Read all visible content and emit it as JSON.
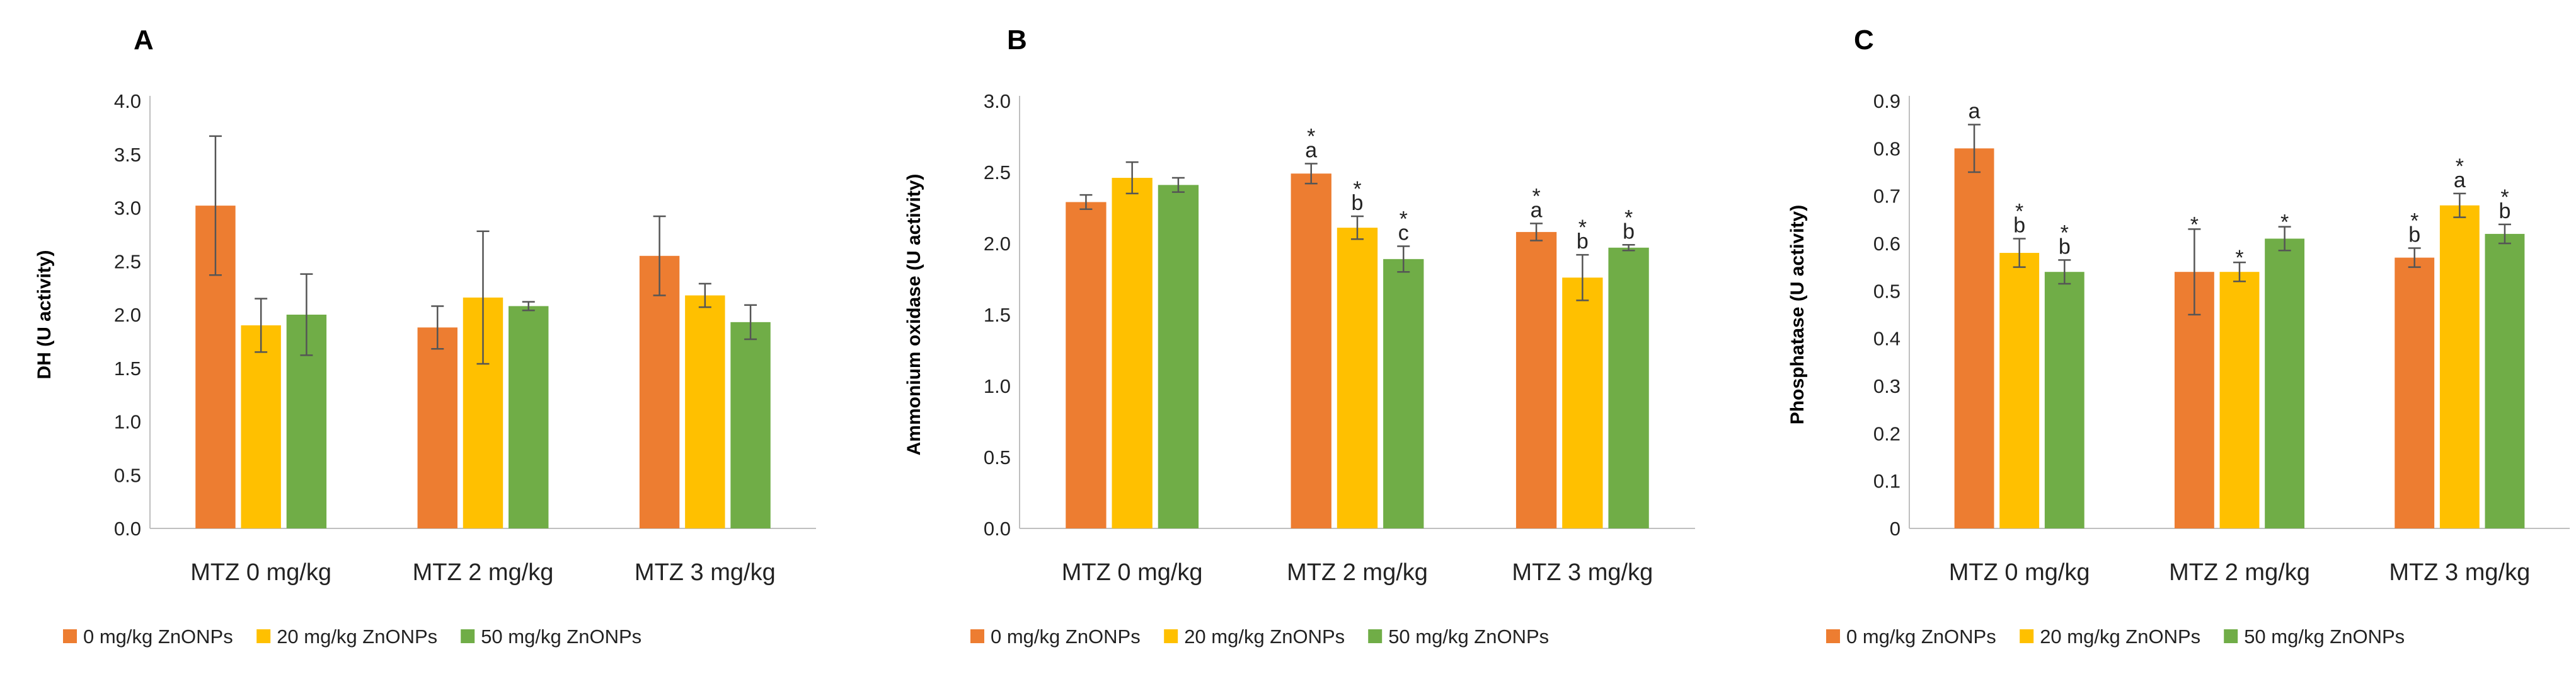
{
  "colors": [
    "#ED7D31",
    "#FFC000",
    "#70AD47"
  ],
  "legend": [
    "0 mg/kg ZnONPs",
    "20 mg/kg ZnONPs",
    "50 mg/kg ZnONPs"
  ],
  "chart_data": [
    {
      "type": "bar",
      "panel": "A",
      "ylabel": "DH (U activity)",
      "categories": [
        "MTZ 0 mg/kg",
        "MTZ 2 mg/kg",
        "MTZ 3 mg/kg"
      ],
      "ylim": [
        0,
        4
      ],
      "yticks": [
        "0.0",
        "0.5",
        "1.0",
        "1.5",
        "2.0",
        "2.5",
        "3.0",
        "3.5",
        "4.0"
      ],
      "series": [
        {
          "name": "0 mg/kg ZnONPs",
          "values": [
            3.02,
            1.88,
            2.55
          ],
          "errors": [
            0.65,
            0.2,
            0.37
          ],
          "labels": [
            "",
            "",
            ""
          ]
        },
        {
          "name": "20 mg/kg ZnONPs",
          "values": [
            1.9,
            2.16,
            2.18
          ],
          "errors": [
            0.25,
            0.62,
            0.11
          ],
          "labels": [
            "",
            "",
            ""
          ]
        },
        {
          "name": "50 mg/kg ZnONPs",
          "values": [
            2.0,
            2.08,
            1.93
          ],
          "errors": [
            0.38,
            0.04,
            0.16
          ],
          "labels": [
            "",
            "",
            ""
          ]
        }
      ]
    },
    {
      "type": "bar",
      "panel": "B",
      "ylabel": "Ammonium oxidase (U activity)",
      "categories": [
        "MTZ 0 mg/kg",
        "MTZ 2 mg/kg",
        "MTZ 3 mg/kg"
      ],
      "ylim": [
        0,
        3
      ],
      "yticks": [
        "0.0",
        "0.5",
        "1.0",
        "1.5",
        "2.0",
        "2.5",
        "3.0"
      ],
      "series": [
        {
          "name": "0 mg/kg ZnONPs",
          "values": [
            2.29,
            2.49,
            2.08
          ],
          "errors": [
            0.05,
            0.07,
            0.06
          ],
          "labels": [
            "",
            "*\na",
            "*\na"
          ]
        },
        {
          "name": "20 mg/kg ZnONPs",
          "values": [
            2.46,
            2.11,
            1.76
          ],
          "errors": [
            0.11,
            0.08,
            0.16
          ],
          "labels": [
            "",
            "*\nb",
            "*\nb"
          ]
        },
        {
          "name": "50 mg/kg ZnONPs",
          "values": [
            2.41,
            1.89,
            1.97
          ],
          "errors": [
            0.05,
            0.09,
            0.02
          ],
          "labels": [
            "",
            "*\nc",
            "*\nb"
          ]
        }
      ]
    },
    {
      "type": "bar",
      "panel": "C",
      "ylabel": "Phosphatase (U activity)",
      "categories": [
        "MTZ 0 mg/kg",
        "MTZ 2 mg/kg",
        "MTZ 3 mg/kg"
      ],
      "ylim": [
        0,
        0.9
      ],
      "yticks": [
        "0",
        "0.1",
        "0.2",
        "0.3",
        "0.4",
        "0.5",
        "0.6",
        "0.7",
        "0.8",
        "0.9"
      ],
      "series": [
        {
          "name": "0 mg/kg ZnONPs",
          "values": [
            0.8,
            0.54,
            0.57
          ],
          "errors": [
            0.05,
            0.09,
            0.02
          ],
          "labels": [
            "a",
            "*",
            "*\nb"
          ]
        },
        {
          "name": "20 mg/kg ZnONPs",
          "values": [
            0.58,
            0.54,
            0.68
          ],
          "errors": [
            0.03,
            0.02,
            0.025
          ],
          "labels": [
            "*\nb",
            "*",
            "*\na"
          ]
        },
        {
          "name": "50 mg/kg ZnONPs",
          "values": [
            0.54,
            0.61,
            0.62
          ],
          "errors": [
            0.025,
            0.025,
            0.02
          ],
          "labels": [
            "*\nb",
            "*",
            "*\nb"
          ]
        }
      ]
    }
  ]
}
